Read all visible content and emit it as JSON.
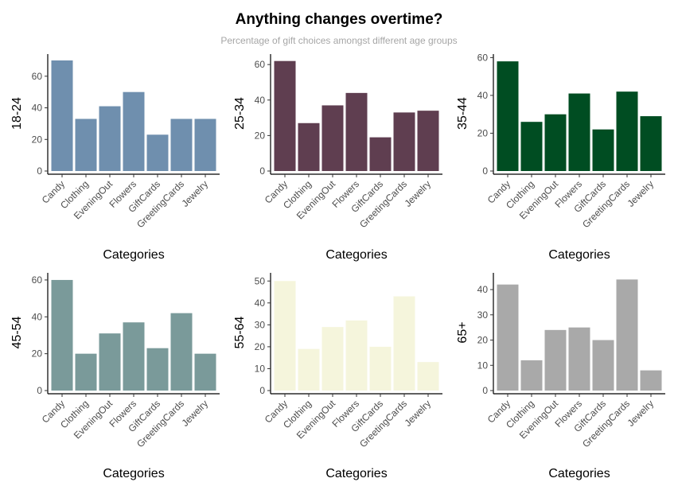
{
  "title": "Anything changes overtime?",
  "subtitle": "Percentage of gift choices amongst different age groups",
  "chart_data": [
    {
      "type": "bar",
      "ylabel": "18-24",
      "xlabel": "Categories",
      "color": "#6f8fae",
      "categories": [
        "Candy",
        "Clothing",
        "EveningOut",
        "Flowers",
        "GiftCards",
        "GreetingCards",
        "Jewelry"
      ],
      "values": [
        70,
        33,
        41,
        50,
        23,
        33,
        33
      ],
      "ylim": [
        0,
        73
      ],
      "yticks": [
        0,
        20,
        40,
        60
      ]
    },
    {
      "type": "bar",
      "ylabel": "25-34",
      "xlabel": "Categories",
      "color": "#5f3e50",
      "categories": [
        "Candy",
        "Clothing",
        "EveningOut",
        "Flowers",
        "GiftCards",
        "GreetingCards",
        "Jewelry"
      ],
      "values": [
        62,
        27,
        37,
        44,
        19,
        33,
        34
      ],
      "ylim": [
        0,
        65
      ],
      "yticks": [
        0,
        20,
        40,
        60
      ]
    },
    {
      "type": "bar",
      "ylabel": "35-44",
      "xlabel": "Categories",
      "color": "#004d22",
      "categories": [
        "Candy",
        "Clothing",
        "EveningOut",
        "Flowers",
        "GiftCards",
        "GreetingCards",
        "Jewelry"
      ],
      "values": [
        58,
        26,
        30,
        41,
        22,
        42,
        29
      ],
      "ylim": [
        0,
        61
      ],
      "yticks": [
        0,
        20,
        40,
        60
      ]
    },
    {
      "type": "bar",
      "ylabel": "45-54",
      "xlabel": "Categories",
      "color": "#7a9a9a",
      "categories": [
        "Candy",
        "Clothing",
        "EveningOut",
        "Flowers",
        "GiftCards",
        "GreetingCards",
        "Jewelry"
      ],
      "values": [
        60,
        20,
        31,
        37,
        23,
        42,
        20
      ],
      "ylim": [
        0,
        63
      ],
      "yticks": [
        0,
        20,
        40,
        60
      ]
    },
    {
      "type": "bar",
      "ylabel": "55-64",
      "xlabel": "Categories",
      "color": "#f5f5dc",
      "categories": [
        "Candy",
        "Clothing",
        "EveningOut",
        "Flowers",
        "GiftCards",
        "GreetingCards",
        "Jewelry"
      ],
      "values": [
        50,
        19,
        29,
        32,
        20,
        43,
        13
      ],
      "ylim": [
        0,
        53
      ],
      "yticks": [
        0,
        10,
        20,
        30,
        40,
        50
      ]
    },
    {
      "type": "bar",
      "ylabel": "65+",
      "xlabel": "Categories",
      "color": "#a9a9a9",
      "categories": [
        "Candy",
        "Clothing",
        "EveningOut",
        "Flowers",
        "GiftCards",
        "GreetingCards",
        "Jewelry"
      ],
      "values": [
        42,
        12,
        24,
        25,
        20,
        44,
        8
      ],
      "ylim": [
        0,
        46
      ],
      "yticks": [
        0,
        10,
        20,
        30,
        40
      ]
    }
  ]
}
